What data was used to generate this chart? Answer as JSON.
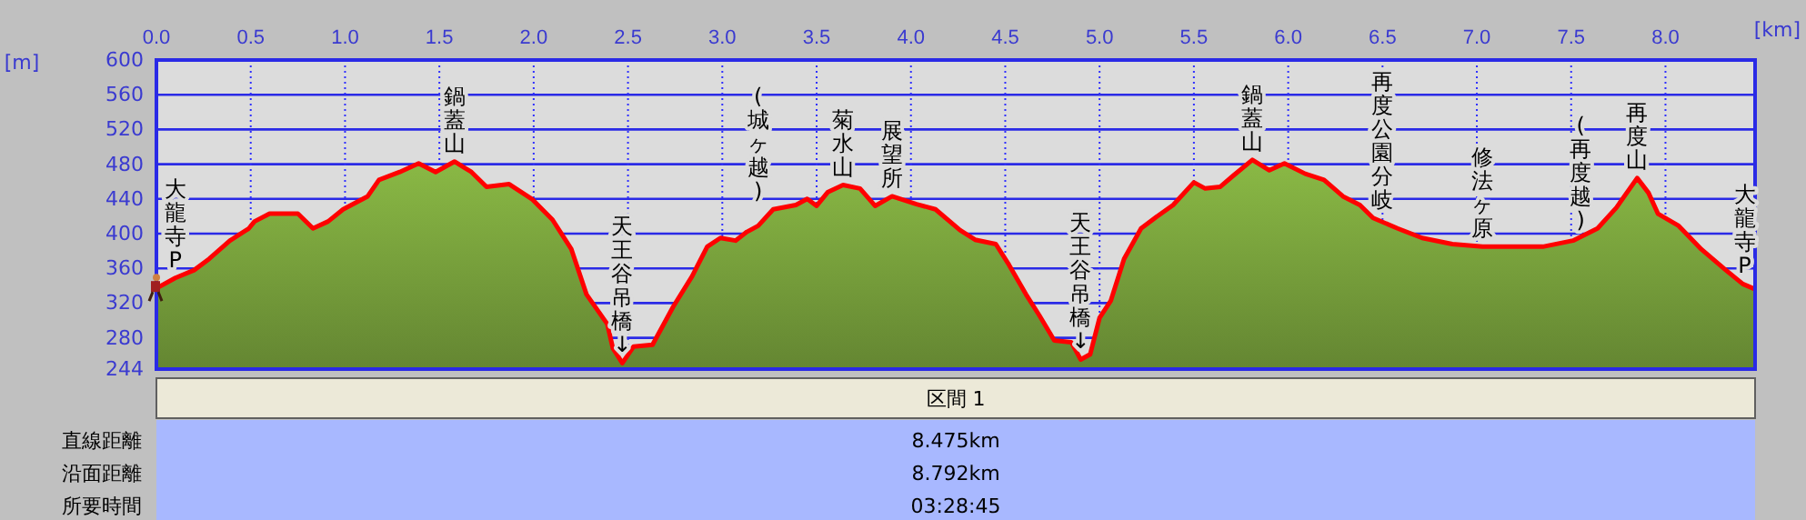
{
  "chart_data": {
    "type": "area",
    "xlabel": "[km]",
    "ylabel": "[m]",
    "x": [
      0,
      0.1,
      0.2,
      0.28,
      0.39,
      0.49,
      0.52,
      0.6,
      0.75,
      0.83,
      0.91,
      0.99,
      1.12,
      1.18,
      1.29,
      1.39,
      1.48,
      1.58,
      1.67,
      1.75,
      1.87,
      1.99,
      2.1,
      2.2,
      2.28,
      2.39,
      2.42,
      2.47,
      2.53,
      2.63,
      2.74,
      2.84,
      2.92,
      2.99,
      3.07,
      3.13,
      3.19,
      3.27,
      3.39,
      3.45,
      3.5,
      3.56,
      3.64,
      3.73,
      3.81,
      3.9,
      4.03,
      4.13,
      4.26,
      4.34,
      4.45,
      4.52,
      4.61,
      4.68,
      4.76,
      4.85,
      4.9,
      4.95,
      5.0,
      5.06,
      5.13,
      5.22,
      5.3,
      5.39,
      5.5,
      5.56,
      5.64,
      5.71,
      5.81,
      5.9,
      5.98,
      6.09,
      6.19,
      6.29,
      6.38,
      6.45,
      6.58,
      6.71,
      6.87,
      7.03,
      7.19,
      7.35,
      7.51,
      7.64,
      7.74,
      7.85,
      7.91,
      7.96,
      8.07,
      8.19,
      8.32,
      8.41,
      8.475
    ],
    "series": [
      {
        "color": "#78a03c",
        "values": [
          337,
          349,
          358,
          371,
          392,
          406,
          414,
          423,
          423,
          406,
          414,
          428,
          443,
          462,
          471,
          481,
          471,
          483,
          471,
          454,
          457,
          440,
          416,
          382,
          330,
          296,
          268,
          251,
          270,
          272,
          316,
          351,
          385,
          395,
          392,
          402,
          409,
          428,
          433,
          440,
          432,
          448,
          456,
          452,
          432,
          443,
          434,
          428,
          404,
          393,
          388,
          364,
          330,
          306,
          277,
          275,
          255,
          261,
          303,
          323,
          371,
          406,
          419,
          433,
          459,
          452,
          454,
          467,
          485,
          473,
          481,
          469,
          462,
          443,
          433,
          418,
          406,
          395,
          388,
          385,
          385,
          385,
          392,
          406,
          430,
          464,
          447,
          423,
          409,
          382,
          358,
          342,
          336
        ]
      }
    ],
    "xlim": [
      0,
      8.475
    ],
    "ylim": [
      244,
      600
    ],
    "xticks": [
      {
        "value": 0,
        "label": "0.0"
      },
      {
        "value": 0.5,
        "label": "0.5"
      },
      {
        "value": 1,
        "label": "1.0"
      },
      {
        "value": 1.5,
        "label": "1.5"
      },
      {
        "value": 2,
        "label": "2.0"
      },
      {
        "value": 2.5,
        "label": "2.5"
      },
      {
        "value": 3,
        "label": "3.0"
      },
      {
        "value": 3.5,
        "label": "3.5"
      },
      {
        "value": 4,
        "label": "4.0"
      },
      {
        "value": 4.5,
        "label": "4.5"
      },
      {
        "value": 5,
        "label": "5.0"
      },
      {
        "value": 5.5,
        "label": "5.5"
      },
      {
        "value": 6,
        "label": "6.0"
      },
      {
        "value": 6.5,
        "label": "6.5"
      },
      {
        "value": 7,
        "label": "7.0"
      },
      {
        "value": 7.5,
        "label": "7.5"
      },
      {
        "value": 8,
        "label": "8.0"
      }
    ],
    "yticks": [
      244,
      280,
      320,
      360,
      400,
      440,
      480,
      520,
      560,
      600
    ],
    "grid": true,
    "annotations": [
      {
        "text": "大龍寺P",
        "x": 0.1,
        "y": 349
      },
      {
        "text": "鍋蓋山",
        "x": 1.58,
        "y": 483
      },
      {
        "text": "天王谷吊橋↓",
        "x": 2.47,
        "y": 251
      },
      {
        "text": "(城ヶ越)",
        "x": 3.19,
        "y": 428
      },
      {
        "text": "菊水山",
        "x": 3.64,
        "y": 456
      },
      {
        "text": "展望所",
        "x": 3.9,
        "y": 443
      },
      {
        "text": "天王谷吊橋↓",
        "x": 4.9,
        "y": 255
      },
      {
        "text": "鍋蓋山",
        "x": 5.81,
        "y": 485
      },
      {
        "text": "再度公園分岐",
        "x": 6.5,
        "y": 418
      },
      {
        "text": "修法ヶ原",
        "x": 7.03,
        "y": 385
      },
      {
        "text": "(再度越)",
        "x": 7.55,
        "y": 395
      },
      {
        "text": "再度山",
        "x": 7.85,
        "y": 464
      },
      {
        "text": "大龍寺P",
        "x": 8.42,
        "y": 342
      },
      "区間 1",
      "直線距離",
      "8.475km",
      "沿面距離",
      "8.792km",
      "所要時間",
      "03:28:45"
    ]
  }
}
